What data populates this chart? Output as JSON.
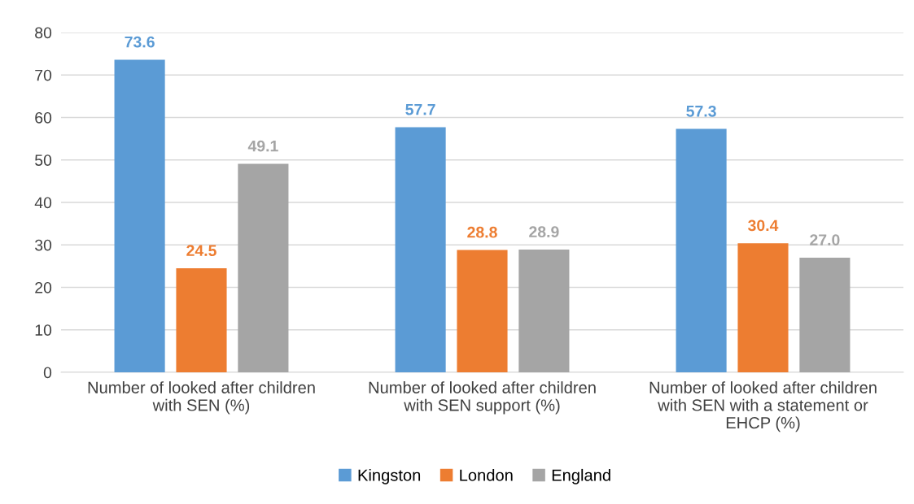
{
  "chart_data": {
    "type": "bar",
    "categories": [
      "Number of looked after children\nwith SEN (%)",
      "Number of looked after children\nwith SEN support (%)",
      "Number of looked after children\nwith SEN with a statement or\nEHCP (%)"
    ],
    "series": [
      {
        "name": "Kingston",
        "color": "#5b9bd5",
        "values": [
          73.6,
          57.7,
          57.3
        ]
      },
      {
        "name": "London",
        "color": "#ed7d31",
        "values": [
          24.5,
          28.8,
          30.4
        ]
      },
      {
        "name": "England",
        "color": "#a5a5a5",
        "values": [
          49.1,
          28.9,
          27.0
        ]
      }
    ],
    "value_labels": [
      [
        "73.6",
        "57.7",
        "57.3"
      ],
      [
        "24.5",
        "28.8",
        "30.4"
      ],
      [
        "49.1",
        "28.9",
        "27.0"
      ]
    ],
    "ylim": [
      0,
      80
    ],
    "yticks": [
      0,
      10,
      20,
      30,
      40,
      50,
      60,
      70,
      80
    ],
    "grid": "y",
    "legend": "bottom"
  }
}
